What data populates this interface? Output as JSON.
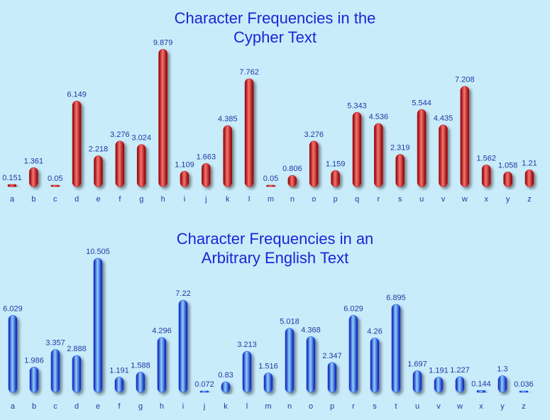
{
  "chart_data": [
    {
      "type": "bar",
      "title_lines": [
        "Character Frequencies in the",
        "Cypher Text"
      ],
      "categories": [
        "a",
        "b",
        "c",
        "d",
        "e",
        "f",
        "g",
        "h",
        "i",
        "j",
        "k",
        "l",
        "m",
        "n",
        "o",
        "p",
        "q",
        "r",
        "s",
        "u",
        "v",
        "w",
        "x",
        "y",
        "z"
      ],
      "values": [
        0.151,
        1.361,
        0.05,
        6.149,
        2.218,
        3.276,
        3.024,
        9.879,
        1.109,
        1.663,
        4.385,
        7.762,
        0.05,
        0.806,
        3.276,
        1.159,
        5.343,
        4.536,
        2.319,
        5.544,
        4.435,
        7.208,
        1.562,
        1.058,
        1.21
      ],
      "value_labels": [
        "0.151",
        "1.361",
        "0.05",
        "6.149",
        "2.218",
        "3.276",
        "3.024",
        "9.879",
        "1.109",
        "1.663",
        "4.385",
        "7.762",
        "0.05",
        "0.806",
        "3.276",
        "1.159",
        "5.343",
        "4.536",
        "2.319",
        "5.544",
        "4.435",
        "7.208",
        "1.562",
        "1.058",
        "1.21"
      ],
      "colors": {
        "bar_dark": "#7a0000",
        "bar_mid": "#c40f0f",
        "bar_light": "#ff7070",
        "label": "#1e3aa0"
      },
      "xlabel": "",
      "ylabel": "",
      "grid": false
    },
    {
      "type": "bar",
      "title_lines": [
        "Character Frequencies in an",
        "Arbitrary English Text"
      ],
      "categories": [
        "a",
        "b",
        "c",
        "d",
        "e",
        "f",
        "g",
        "h",
        "i",
        "j",
        "k",
        "l",
        "m",
        "n",
        "o",
        "p",
        "r",
        "s",
        "t",
        "u",
        "v",
        "w",
        "x",
        "y",
        "z"
      ],
      "values": [
        6.029,
        1.986,
        3.357,
        2.888,
        10.505,
        1.191,
        1.588,
        4.296,
        7.22,
        0.072,
        0.83,
        3.213,
        1.516,
        5.018,
        4.368,
        2.347,
        6.029,
        4.26,
        6.895,
        1.697,
        1.191,
        1.227,
        0.144,
        1.3,
        0.036
      ],
      "value_labels": [
        "6.029",
        "1.986",
        "3.357",
        "2.888",
        "10.505",
        "1.191",
        "1.588",
        "4.296",
        "7.22",
        "0.072",
        "0.83",
        "3.213",
        "1.516",
        "5.018",
        "4.368",
        "2.347",
        "6.029",
        "4.26",
        "6.895",
        "1.697",
        "1.191",
        "1.227",
        "0.144",
        "1.3",
        "0.036"
      ],
      "colors": {
        "bar_dark": "#0010a8",
        "bar_mid": "#1d4dff",
        "bar_light": "#8fd0ff",
        "label": "#1e3aa0"
      },
      "xlabel": "",
      "ylabel": "",
      "grid": false
    }
  ]
}
